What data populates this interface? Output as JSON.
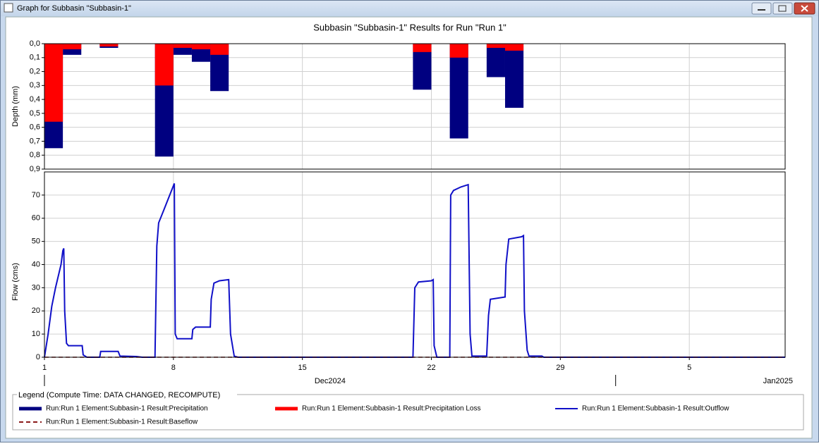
{
  "window": {
    "title": "Graph for Subbasin \"Subbasin-1\""
  },
  "legend": {
    "title": "Legend (Compute Time: DATA CHANGED, RECOMPUTE)"
  },
  "chart_data": [
    {
      "type": "bar",
      "title": "Subbasin \"Subbasin-1\" Results for Run \"Run 1\"",
      "y_label": "Depth (mm)",
      "inverted": true,
      "xlim": [
        0,
        40.2
      ],
      "xticks": [
        7,
        14,
        21,
        28,
        35
      ],
      "ylim": [
        0,
        0.9
      ],
      "yticks": [
        {
          "value": 0,
          "label": "0,0"
        },
        {
          "value": 0.1,
          "label": "0,1"
        },
        {
          "value": 0.2,
          "label": "0,2"
        },
        {
          "value": 0.3,
          "label": "0,3"
        },
        {
          "value": 0.4,
          "label": "0,4"
        },
        {
          "value": 0.5,
          "label": "0,5"
        },
        {
          "value": 0.6,
          "label": "0,6"
        },
        {
          "value": 0.7,
          "label": "0,7"
        },
        {
          "value": 0.8,
          "label": "0,8"
        },
        {
          "value": 0.9,
          "label": "0,9"
        }
      ],
      "x": [
        0,
        1,
        3,
        6,
        7,
        8,
        9,
        20,
        22,
        24,
        25
      ],
      "series": [
        {
          "name": "Run:Run 1 Element:Subbasin-1 Result:Precipitation",
          "color": "#000080",
          "values": [
            0.75,
            0.08,
            0.03,
            0.81,
            0.08,
            0.13,
            0.34,
            0.33,
            0.68,
            0.24,
            0.46
          ]
        },
        {
          "name": "Run:Run 1 Element:Subbasin-1 Result:Precipitation Loss",
          "color": "#ff0000",
          "values": [
            0.56,
            0.04,
            0.02,
            0.3,
            0.03,
            0.04,
            0.08,
            0.06,
            0.1,
            0.03,
            0.05
          ]
        }
      ]
    },
    {
      "type": "line",
      "y_label": "Flow (cms)",
      "xlim": [
        0,
        40.2
      ],
      "xticks": [
        {
          "value": 0,
          "label": "1"
        },
        {
          "value": 7,
          "label": "8"
        },
        {
          "value": 14,
          "label": "15"
        },
        {
          "value": 21,
          "label": "22"
        },
        {
          "value": 28,
          "label": "29"
        },
        {
          "value": 35,
          "label": "5"
        }
      ],
      "month_labels": [
        {
          "value": 0,
          "label": "Dec2024"
        },
        {
          "value": 31,
          "label": "Jan2025"
        }
      ],
      "ylim": [
        0,
        80
      ],
      "yticks": [
        0,
        10,
        20,
        30,
        40,
        50,
        60,
        70
      ],
      "series": [
        {
          "name": "Run:Run 1 Element:Subbasin-1 Result:Outflow",
          "color": "#1010c8",
          "x": [
            0,
            0.2,
            0.4,
            0.6,
            0.9,
            1.0,
            1.05,
            1.1,
            1.2,
            1.3,
            2,
            2.05,
            2.1,
            2.3,
            3,
            3.05,
            4,
            4.1,
            5,
            5.3,
            6,
            6.1,
            6.2,
            6.5,
            6.8,
            7,
            7.05,
            7.1,
            7.2,
            8,
            8.05,
            8.2,
            9,
            9.05,
            9.2,
            9.5,
            10,
            10.1,
            10.3,
            10.5,
            20,
            20.1,
            20.3,
            21,
            21.1,
            21.15,
            21.3,
            22,
            22.05,
            22.2,
            22.6,
            23,
            23.1,
            23.2,
            24,
            24.1,
            24.2,
            25,
            25.05,
            25.2,
            25.9,
            26,
            26.05,
            26.2,
            26.3,
            27,
            27.1,
            40.2
          ],
          "values": [
            0,
            10,
            22,
            30,
            40,
            46,
            47,
            20,
            6,
            5,
            5,
            5,
            1,
            0,
            0,
            2.5,
            2.5,
            0.5,
            0.3,
            0,
            0,
            48,
            58,
            64,
            70,
            74,
            75,
            10,
            8,
            8,
            12,
            13,
            13,
            25,
            32,
            33,
            33.5,
            10,
            0.5,
            0,
            0,
            30,
            32.5,
            33,
            33.5,
            5,
            0,
            0,
            70,
            72,
            73.5,
            74.5,
            10,
            0.5,
            0.5,
            18,
            25,
            26,
            40,
            51,
            52,
            52.5,
            20,
            3,
            0.5,
            0.5,
            0,
            0
          ]
        },
        {
          "name": "Run:Run 1 Element:Subbasin-1 Result:Baseflow",
          "color": "#8b1a1a",
          "dashed": true,
          "x": [
            0,
            40.2
          ],
          "values": [
            0,
            0
          ]
        }
      ]
    }
  ]
}
